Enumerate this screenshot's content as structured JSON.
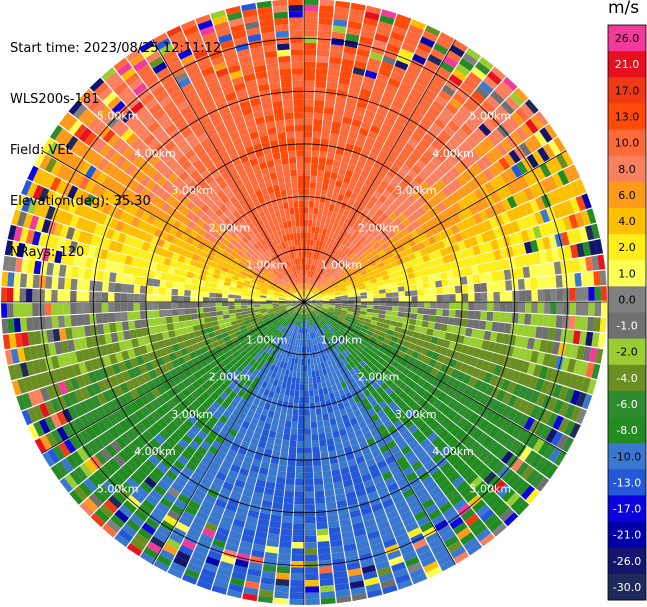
{
  "header": {
    "start_time": "Start time: 2023/08/25 12:11:12",
    "instrument": "WLS200s-181",
    "field": "Field: VEL",
    "elevation": "Elevation(deg): 35.30",
    "nrays": "NRays: 120"
  },
  "colorbar": {
    "unit": "m/s",
    "bins": [
      {
        "label": "26.0",
        "color": "#f23a9c"
      },
      {
        "label": "21.0",
        "color": "#e8101c"
      },
      {
        "label": "17.0",
        "color": "#f03a16"
      },
      {
        "label": "13.0",
        "color": "#ff4a0a"
      },
      {
        "label": "10.0",
        "color": "#ff6a3a"
      },
      {
        "label": "8.0",
        "color": "#fb8060"
      },
      {
        "label": "6.0",
        "color": "#ff9a1a"
      },
      {
        "label": "4.0",
        "color": "#ffbf00"
      },
      {
        "label": "2.0",
        "color": "#ffee1a"
      },
      {
        "label": "1.0",
        "color": "#ffff55"
      },
      {
        "label": "0.0",
        "color": "#808080"
      },
      {
        "label": "-1.0",
        "color": "#707070"
      },
      {
        "label": "-2.0",
        "color": "#9acd32"
      },
      {
        "label": "-4.0",
        "color": "#6b8e23"
      },
      {
        "label": "-6.0",
        "color": "#2e8b2e"
      },
      {
        "label": "-8.0",
        "color": "#228b22"
      },
      {
        "label": "-10.0",
        "color": "#3a78d0"
      },
      {
        "label": "-13.0",
        "color": "#2458d8"
      },
      {
        "label": "-17.0",
        "color": "#0a00e0"
      },
      {
        "label": "-21.0",
        "color": "#0000a8"
      },
      {
        "label": "-26.0",
        "color": "#14146e"
      },
      {
        "label": "-30.0",
        "color": "#1e2a5a"
      }
    ]
  },
  "chart_data": {
    "type": "heatmap",
    "projection": "polar PPI scan",
    "field": "VEL",
    "elevation_deg": 35.3,
    "nrays": 120,
    "range_ring_labels": [
      "1.00km",
      "2.00km",
      "3.00km",
      "4.00km",
      "5.00km"
    ],
    "range_rings_km": [
      1,
      2,
      3,
      4,
      5
    ],
    "max_range_km": 5.75,
    "spoke_angles_deg": [
      0,
      30,
      60,
      90,
      120,
      150,
      180,
      210,
      240,
      270,
      300,
      330
    ],
    "velocity_pattern": {
      "description": "positive (receding) velocities to the north, negative (approaching) to the south, near zero along the east-west axis",
      "north_peak_ms": 13,
      "south_peak_ms": -10,
      "noise_beyond_km": 4.3
    }
  }
}
